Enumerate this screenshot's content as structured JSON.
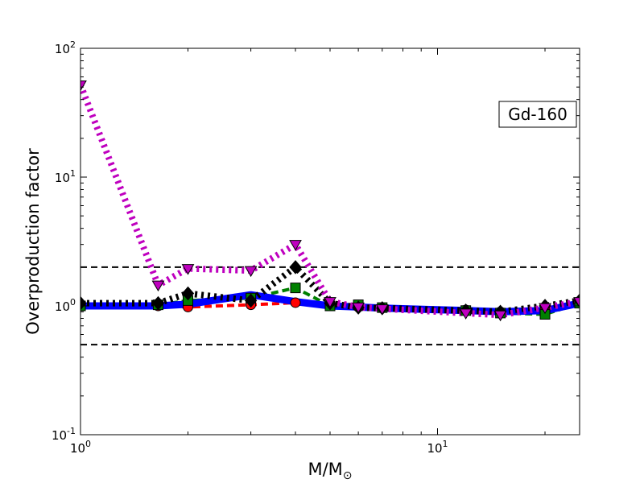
{
  "chart_data": {
    "type": "line",
    "xscale": "log",
    "yscale": "log",
    "xlim": [
      1,
      25
    ],
    "ylim": [
      0.1,
      100
    ],
    "xlabel": "M/M",
    "xlabel_subscript": "⊙",
    "ylabel": "Overproduction factor",
    "annotation": "Gd-160",
    "annotation_position": "upper-right",
    "grid": false,
    "x_ticks": [
      {
        "value": 1,
        "base": "10",
        "exp": "0"
      },
      {
        "value": 10,
        "base": "10",
        "exp": "1"
      }
    ],
    "y_ticks": [
      {
        "value": 0.1,
        "base": "10",
        "exp": "-1"
      },
      {
        "value": 1,
        "base": "10",
        "exp": "0"
      },
      {
        "value": 10,
        "base": "10",
        "exp": "1"
      },
      {
        "value": 100,
        "base": "10",
        "exp": "2"
      }
    ],
    "reference_lines": [
      {
        "y": 2.0,
        "color": "#000000",
        "style": "dashed"
      },
      {
        "y": 0.5,
        "color": "#000000",
        "style": "dashed"
      }
    ],
    "series": [
      {
        "color": "#ff0000",
        "style": "dashed",
        "marker": "circle",
        "x": [
          1,
          1.65,
          2,
          3,
          4,
          5,
          6,
          7,
          12,
          15,
          20,
          25
        ],
        "y": [
          1.0,
          1.0,
          0.98,
          1.02,
          1.06,
          1.0,
          0.98,
          0.97,
          0.93,
          0.9,
          0.93,
          1.05
        ]
      },
      {
        "color": "#008000",
        "style": "dashed",
        "marker": "square",
        "x": [
          1,
          1.65,
          2,
          3,
          4,
          5,
          6,
          7,
          12,
          15,
          20,
          25
        ],
        "y": [
          1.0,
          1.02,
          1.1,
          1.15,
          1.38,
          1.0,
          1.02,
          0.97,
          0.92,
          0.88,
          0.86,
          1.05
        ]
      },
      {
        "color": "#0000ff",
        "style": "solid",
        "marker": "none",
        "x": [
          1,
          1.65,
          2,
          3,
          4,
          5,
          6,
          7,
          12,
          15,
          20,
          25
        ],
        "y": [
          1.0,
          1.0,
          1.03,
          1.22,
          1.08,
          1.0,
          0.98,
          0.96,
          0.92,
          0.9,
          0.92,
          1.05
        ]
      },
      {
        "color": "#000000",
        "style": "dotted",
        "marker": "diamond",
        "x": [
          1,
          1.65,
          2,
          3,
          4,
          5,
          6,
          7,
          12,
          15,
          20,
          25
        ],
        "y": [
          1.05,
          1.05,
          1.25,
          1.1,
          2.0,
          1.05,
          0.97,
          0.96,
          0.92,
          0.9,
          1.0,
          1.1
        ]
      },
      {
        "color": "#bf00bf",
        "style": "dotted",
        "marker": "triangle-down",
        "x": [
          1,
          1.65,
          2,
          3,
          4,
          5,
          6,
          7,
          12,
          15,
          20,
          25
        ],
        "y": [
          52,
          1.45,
          1.95,
          1.88,
          3.0,
          1.08,
          0.98,
          0.95,
          0.88,
          0.85,
          0.97,
          1.08
        ]
      }
    ]
  }
}
